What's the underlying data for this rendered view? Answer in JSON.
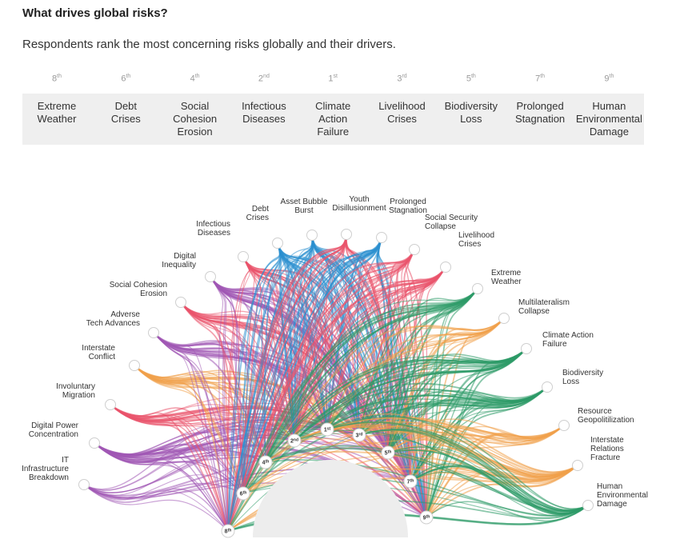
{
  "title": "What drives global risks?",
  "subtitle": "Respondents rank the most concerning risks globally and their drivers.",
  "chart_data": {
    "type": "diagram",
    "columns": [
      {
        "rank": "8",
        "suffix": "th",
        "label": "Extreme\nWeather"
      },
      {
        "rank": "6",
        "suffix": "th",
        "label": "Debt\nCrises"
      },
      {
        "rank": "4",
        "suffix": "th",
        "label": "Social\nCohesion\nErosion"
      },
      {
        "rank": "2",
        "suffix": "nd",
        "label": "Infectious\nDiseases"
      },
      {
        "rank": "1",
        "suffix": "st",
        "label": "Climate\nAction\nFailure"
      },
      {
        "rank": "3",
        "suffix": "rd",
        "label": "Livelihood\nCrises"
      },
      {
        "rank": "5",
        "suffix": "th",
        "label": "Biodiversity\nLoss"
      },
      {
        "rank": "7",
        "suffix": "th",
        "label": "Prolonged\nStagnation"
      },
      {
        "rank": "9",
        "suffix": "th",
        "label": "Human\nEnvironmental\nDamage"
      }
    ],
    "drivers": [
      {
        "label": "IT\nInfrastructure\nBreakdown",
        "color": "#a158b5"
      },
      {
        "label": "Digital Power\nConcentration",
        "color": "#a158b5"
      },
      {
        "label": "Involuntary\nMigration",
        "color": "#e9536b"
      },
      {
        "label": "Interstate\nConflict",
        "color": "#f0a04b"
      },
      {
        "label": "Adverse\nTech Advances",
        "color": "#a158b5"
      },
      {
        "label": "Social Cohesion\nErosion",
        "color": "#e9536b"
      },
      {
        "label": "Digital\nInequality",
        "color": "#a158b5"
      },
      {
        "label": "Infectious\nDiseases",
        "color": "#e9536b"
      },
      {
        "label": "Debt\nCrises",
        "color": "#2b8fd0"
      },
      {
        "label": "Asset Bubble\nBurst",
        "color": "#2b8fd0"
      },
      {
        "label": "Youth\nDisillusionment",
        "color": "#e9536b"
      },
      {
        "label": "Prolonged\nStagnation",
        "color": "#2b8fd0"
      },
      {
        "label": "Social Security\nCollapse",
        "color": "#e9536b"
      },
      {
        "label": "Livelihood\nCrises",
        "color": "#e9536b"
      },
      {
        "label": "Extreme\nWeather",
        "color": "#2e9a68"
      },
      {
        "label": "Multilateralism\nCollapse",
        "color": "#f0a04b"
      },
      {
        "label": "Climate Action\nFailure",
        "color": "#2e9a68"
      },
      {
        "label": "Biodiversity\nLoss",
        "color": "#2e9a68"
      },
      {
        "label": "Resource\nGeopolitilization",
        "color": "#f0a04b"
      },
      {
        "label": "Interstate\nRelations\nFracture",
        "color": "#f0a04b"
      },
      {
        "label": "Human\nEnvironmental\nDamage",
        "color": "#2e9a68"
      }
    ],
    "outcomes": [
      {
        "rank": "8",
        "suffix": "th"
      },
      {
        "rank": "6",
        "suffix": "th"
      },
      {
        "rank": "4",
        "suffix": "th"
      },
      {
        "rank": "2",
        "suffix": "nd"
      },
      {
        "rank": "1",
        "suffix": "st"
      },
      {
        "rank": "3",
        "suffix": "rd"
      },
      {
        "rank": "5",
        "suffix": "th"
      },
      {
        "rank": "7",
        "suffix": "th"
      },
      {
        "rank": "9",
        "suffix": "th"
      }
    ]
  }
}
